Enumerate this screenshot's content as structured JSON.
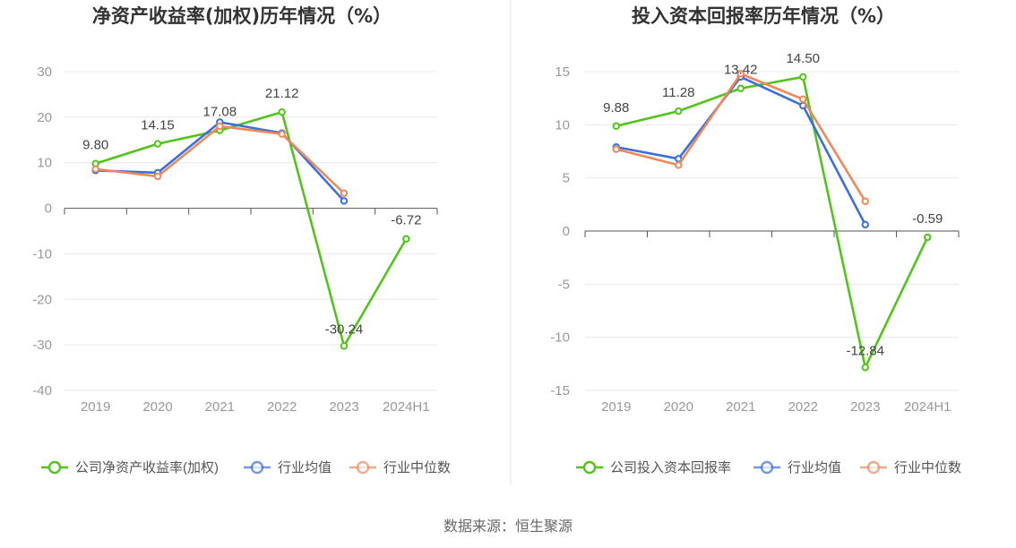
{
  "colors": {
    "company": "#52c41a",
    "avg": "#3b6fdc",
    "median": "#f0885a",
    "grid": "#e8e8e8",
    "axis": "#555555",
    "divider": "#e6e6e6"
  },
  "source": "数据来源：恒生聚源",
  "chart_data": [
    {
      "type": "line",
      "title": "净资产收益率(加权)历年情况（%）",
      "categories": [
        "2019",
        "2020",
        "2021",
        "2022",
        "2023",
        "2024H1"
      ],
      "ylim": [
        -40,
        30
      ],
      "yticks": [
        30,
        20,
        10,
        0,
        -10,
        -20,
        -30,
        -40
      ],
      "grid": true,
      "legend_position": "bottom",
      "series": [
        {
          "name": "公司净资产收益率(加权)",
          "color": "#52c41a",
          "values": [
            9.8,
            14.15,
            17.08,
            21.12,
            -30.24,
            -6.72
          ],
          "labels": [
            "9.80",
            "14.15",
            "17.08",
            "21.12",
            "-30.24",
            "-6.72"
          ]
        },
        {
          "name": "行业均值",
          "color": "#3b6fdc",
          "values": [
            8.3,
            7.8,
            18.9,
            16.5,
            1.6,
            null
          ]
        },
        {
          "name": "行业中位数",
          "color": "#f0885a",
          "values": [
            8.6,
            7.0,
            18.0,
            16.3,
            3.3,
            null
          ]
        }
      ]
    },
    {
      "type": "line",
      "title": "投入资本回报率历年情况（%）",
      "categories": [
        "2019",
        "2020",
        "2021",
        "2022",
        "2023",
        "2024H1"
      ],
      "ylim": [
        -15,
        15
      ],
      "yticks": [
        15,
        10,
        5,
        0,
        -5,
        -10,
        -15
      ],
      "grid": true,
      "legend_position": "bottom",
      "series": [
        {
          "name": "公司投入资本回报率",
          "color": "#52c41a",
          "values": [
            9.88,
            11.28,
            13.42,
            14.5,
            -12.84,
            -0.59
          ],
          "labels": [
            "9.88",
            "11.28",
            "13.42",
            "14.50",
            "-12.84",
            "-0.59"
          ]
        },
        {
          "name": "行业均值",
          "color": "#3b6fdc",
          "values": [
            7.9,
            6.8,
            14.5,
            11.8,
            0.6,
            null
          ]
        },
        {
          "name": "行业中位数",
          "color": "#f0885a",
          "values": [
            7.7,
            6.2,
            14.8,
            12.4,
            2.8,
            null
          ]
        }
      ]
    }
  ]
}
